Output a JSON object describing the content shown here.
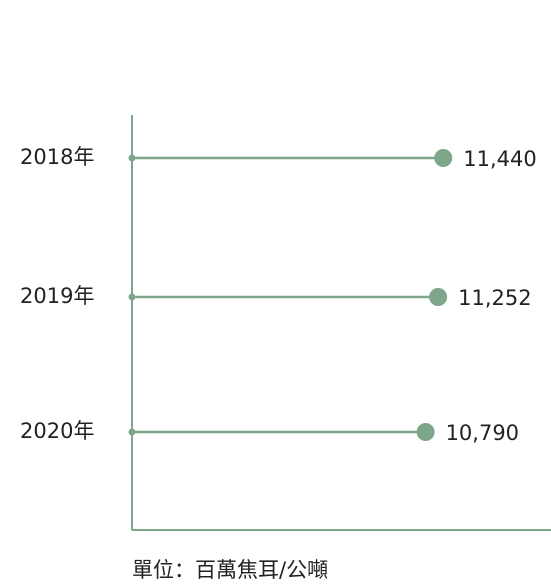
{
  "chart_data": {
    "type": "lollipop",
    "orientation": "horizontal",
    "categories": [
      "2018年",
      "2019年",
      "2020年"
    ],
    "values": [
      11440,
      11252,
      10790
    ],
    "value_labels": [
      "11,440",
      "11,252",
      "10,790"
    ],
    "color": "#7fa68a",
    "xlim": [
      0,
      15400
    ],
    "x_label": "單位：百萬焦耳/公噸"
  }
}
